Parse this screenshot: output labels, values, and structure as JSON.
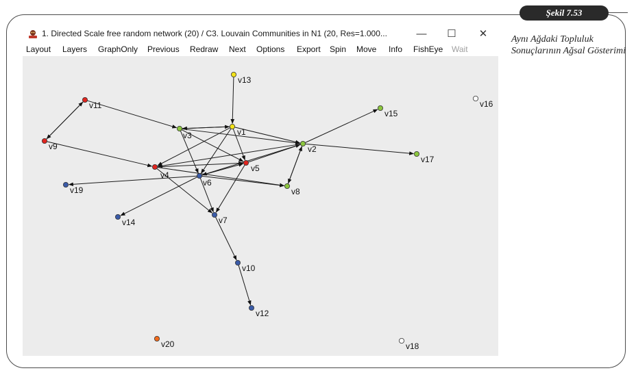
{
  "caption": {
    "figure_label": "Şekil 7.53",
    "text": "Aynı Ağdaki Topluluk Sonuçlarının Ağsal Gösterimi"
  },
  "window": {
    "title": "1. Directed Scale free random network (20) / C3. Louvain Communities in N1 (20, Res=1.000...",
    "controls": {
      "minimize": "—",
      "maximize": "☐",
      "close": "✕"
    }
  },
  "menu": [
    {
      "label": "Layout",
      "enabled": true
    },
    {
      "label": "Layers",
      "enabled": true
    },
    {
      "label": "GraphOnly",
      "enabled": true
    },
    {
      "label": "Previous",
      "enabled": true
    },
    {
      "label": "Redraw",
      "enabled": true
    },
    {
      "label": "Next",
      "enabled": true
    },
    {
      "label": "Options",
      "enabled": true
    },
    {
      "label": "Export",
      "enabled": true
    },
    {
      "label": "Spin",
      "enabled": true
    },
    {
      "label": "Move",
      "enabled": true
    },
    {
      "label": "Info",
      "enabled": true
    },
    {
      "label": "FishEye",
      "enabled": true
    },
    {
      "label": "Wait",
      "enabled": false
    }
  ],
  "communities": {
    "yellow": "#f2e21a",
    "red": "#e0251f",
    "green": "#8cc63f",
    "blue": "#3a5ba8",
    "orange": "#f26b1d",
    "isolated": "#ffffff"
  },
  "nodes": [
    {
      "id": "v1",
      "community": "yellow"
    },
    {
      "id": "v2",
      "community": "green"
    },
    {
      "id": "v3",
      "community": "green"
    },
    {
      "id": "v4",
      "community": "red"
    },
    {
      "id": "v5",
      "community": "red"
    },
    {
      "id": "v6",
      "community": "blue"
    },
    {
      "id": "v7",
      "community": "blue"
    },
    {
      "id": "v8",
      "community": "green"
    },
    {
      "id": "v9",
      "community": "red"
    },
    {
      "id": "v10",
      "community": "blue"
    },
    {
      "id": "v11",
      "community": "red"
    },
    {
      "id": "v12",
      "community": "blue"
    },
    {
      "id": "v13",
      "community": "yellow"
    },
    {
      "id": "v14",
      "community": "blue"
    },
    {
      "id": "v15",
      "community": "green"
    },
    {
      "id": "v16",
      "community": "isolated"
    },
    {
      "id": "v17",
      "community": "green"
    },
    {
      "id": "v18",
      "community": "isolated"
    },
    {
      "id": "v19",
      "community": "blue"
    },
    {
      "id": "v20",
      "community": "orange"
    }
  ],
  "edges": [
    [
      "v13",
      "v1"
    ],
    [
      "v11",
      "v3"
    ],
    [
      "v3",
      "v1"
    ],
    [
      "v1",
      "v3"
    ],
    [
      "v1",
      "v2"
    ],
    [
      "v3",
      "v2"
    ],
    [
      "v2",
      "v15"
    ],
    [
      "v2",
      "v17"
    ],
    [
      "v2",
      "v8"
    ],
    [
      "v8",
      "v2"
    ],
    [
      "v1",
      "v5"
    ],
    [
      "v3",
      "v6"
    ],
    [
      "v1",
      "v4"
    ],
    [
      "v9",
      "v4"
    ],
    [
      "v4",
      "v5"
    ],
    [
      "v6",
      "v5"
    ],
    [
      "v5",
      "v2"
    ],
    [
      "v2",
      "v6"
    ],
    [
      "v4",
      "v8"
    ],
    [
      "v6",
      "v8"
    ],
    [
      "v6",
      "v19"
    ],
    [
      "v6",
      "v14"
    ],
    [
      "v1",
      "v6"
    ],
    [
      "v4",
      "v7"
    ],
    [
      "v5",
      "v7"
    ],
    [
      "v6",
      "v7"
    ],
    [
      "v7",
      "v10"
    ],
    [
      "v10",
      "v12"
    ],
    [
      "v11",
      "v9"
    ],
    [
      "v9",
      "v11"
    ],
    [
      "v3",
      "v5"
    ],
    [
      "v2",
      "v4"
    ]
  ]
}
